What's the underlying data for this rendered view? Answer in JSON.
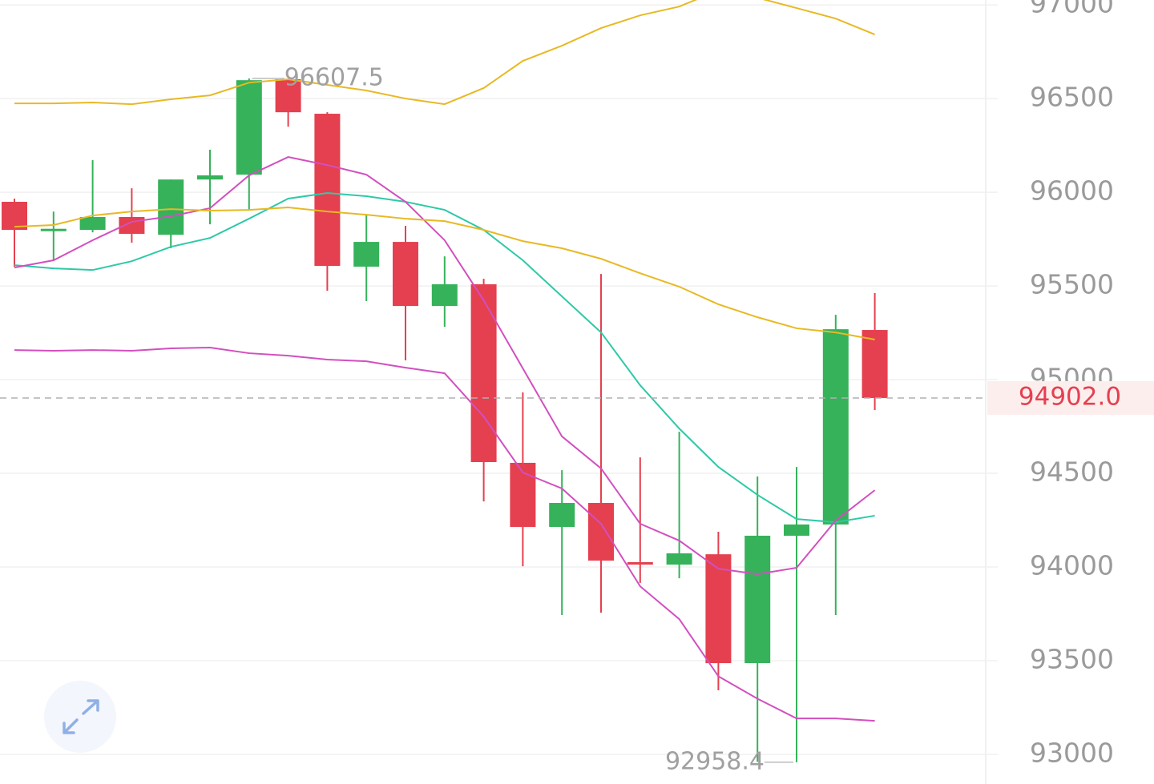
{
  "chart_data": {
    "type": "candlestick",
    "categories": [
      null,
      null,
      null,
      null,
      null,
      null,
      null,
      null,
      null,
      null,
      null,
      null,
      null,
      null,
      null,
      null,
      null,
      null,
      null,
      null,
      null,
      null,
      null
    ],
    "open": [
      95949,
      95795,
      95799,
      95868,
      95773,
      96068,
      96094,
      96603,
      96419,
      95603,
      95735,
      95393,
      95509,
      94556,
      94214,
      94342,
      94026,
      94013,
      94068,
      93487,
      94167,
      94227,
      95265
    ],
    "high": [
      95966,
      95897,
      96171,
      96021,
      96068,
      96227,
      96607.5,
      96600,
      96427,
      95880,
      95821,
      95658,
      95538,
      94932,
      94517,
      95564,
      94585,
      94722,
      94188,
      94483,
      94534,
      95346,
      95462
    ],
    "low": [
      95603,
      95637,
      95786,
      95731,
      95701,
      95829,
      95906,
      96350,
      95474,
      95419,
      95103,
      95282,
      94350,
      94004,
      93744,
      93756,
      93915,
      93940,
      93342,
      92960,
      92958.4,
      93744,
      94838
    ],
    "close": [
      95799,
      95805,
      95868,
      95778,
      96068,
      96090,
      96598,
      96427,
      95607,
      95735,
      95393,
      95509,
      94560,
      94214,
      94342,
      94034,
      94013,
      94073,
      93487,
      94167,
      94227,
      95269,
      94902
    ],
    "up_color": "#35b25a",
    "down_color": "#e5404f",
    "lines": [
      {
        "color": "#e8b923",
        "values": [
          96474,
          96474,
          96479,
          96470,
          96496,
          96517,
          96585,
          96603,
          96573,
          96543,
          96500,
          96470,
          96556,
          96701,
          96782,
          96876,
          96944,
          96991,
          97077,
          97038,
          96983,
          96927,
          96842
        ]
      },
      {
        "color": "#e8b923",
        "values": [
          95816,
          95825,
          95876,
          95897,
          95910,
          95902,
          95906,
          95919,
          95897,
          95880,
          95859,
          95846,
          95799,
          95739,
          95701,
          95645,
          95568,
          95496,
          95402,
          95333,
          95274,
          95252,
          95214
        ]
      },
      {
        "color": "#d24fbf",
        "values": [
          95158,
          95154,
          95158,
          95154,
          95167,
          95171,
          95141,
          95128,
          95107,
          95098,
          95064,
          95034,
          94803,
          94504,
          94419,
          94231,
          93897,
          93722,
          93417,
          93297,
          93192,
          93192,
          93179
        ]
      },
      {
        "color": "#d24fbf",
        "values": [
          95598,
          95637,
          95744,
          95842,
          95872,
          95915,
          96090,
          96188,
          96145,
          96094,
          95949,
          95744,
          95423,
          95060,
          94697,
          94526,
          94231,
          94141,
          93991,
          93962,
          93996,
          94248,
          94410
        ]
      },
      {
        "color": "#2ec9a7",
        "values": [
          95611,
          95594,
          95585,
          95632,
          95709,
          95756,
          95859,
          95966,
          95996,
          95979,
          95949,
          95906,
          95799,
          95637,
          95444,
          95252,
          94970,
          94739,
          94534,
          94385,
          94256,
          94239,
          94274
        ]
      }
    ],
    "ylim": [
      92842,
      97026
    ],
    "yticks": [
      93000,
      93500,
      94000,
      94500,
      95000,
      95500,
      96000,
      96500,
      97000
    ],
    "grid": true,
    "last_price": {
      "value": 94902,
      "label": "94902.0"
    }
  }
}
